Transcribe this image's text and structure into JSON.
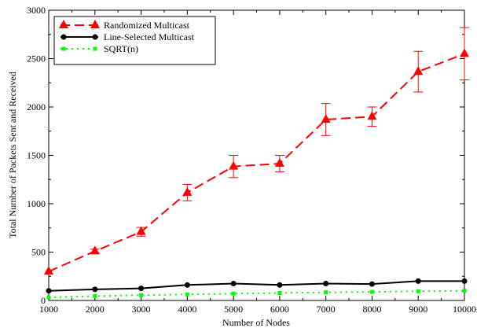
{
  "chart_data": {
    "type": "line",
    "xlabel": "Number of Nodes",
    "ylabel": "Total Number of Packets Sent and Received",
    "xlim": [
      1000,
      10000
    ],
    "ylim": [
      0,
      3000
    ],
    "x_ticks": [
      1000,
      2000,
      3000,
      4000,
      5000,
      6000,
      7000,
      8000,
      9000,
      10000
    ],
    "y_ticks": [
      0,
      500,
      1000,
      1500,
      2000,
      2500,
      3000
    ],
    "x": [
      1000,
      2000,
      3000,
      4000,
      5000,
      6000,
      7000,
      8000,
      9000,
      10000
    ],
    "legend_position": "top-left",
    "grid": false,
    "series": [
      {
        "name": "Randomized Multicast",
        "color": "#ff0000",
        "line_style": "dashed",
        "marker": "triangle",
        "values": [
          300,
          510,
          710,
          1115,
          1385,
          1415,
          1870,
          1900,
          2365,
          2550
        ],
        "error": [
          null,
          20,
          45,
          85,
          115,
          85,
          165,
          100,
          210,
          270
        ]
      },
      {
        "name": "Line-Selected Multicast",
        "color": "#000000",
        "line_style": "solid",
        "marker": "circle",
        "values": [
          100,
          115,
          125,
          160,
          175,
          160,
          175,
          170,
          200,
          200
        ]
      },
      {
        "name": "SQRT(n)",
        "color": "#00ff00",
        "line_style": "dotted",
        "marker": "square",
        "values": [
          32,
          45,
          55,
          63,
          71,
          77,
          84,
          89,
          95,
          100
        ]
      }
    ]
  }
}
